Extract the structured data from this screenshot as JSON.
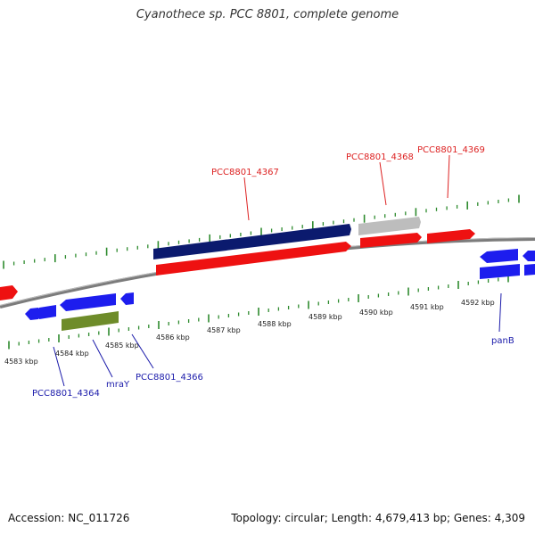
{
  "title": "Cyanothece sp. PCC 8801, complete genome",
  "footer": {
    "accession": "Accession: NC_011726",
    "summary": "Topology: circular; Length: 4,679,413 bp; Genes: 4,309"
  },
  "colors": {
    "backbone": "#8c8c8c",
    "tick": "#2e8b2e",
    "forward_label": "#dd2222",
    "reverse_label": "#1a1aaa",
    "navy": "#0b1a6e",
    "red": "#ee1111",
    "gray": "#bdbdbd",
    "blue": "#1d1dee",
    "olive": "#6e8c2a"
  },
  "scale": {
    "unit": "kbp",
    "ticks": [
      "4583 kbp",
      "4584 kbp",
      "4585 kbp",
      "4586 kbp",
      "4587 kbp",
      "4588 kbp",
      "4589 kbp",
      "4590 kbp",
      "4591 kbp",
      "4592 kbp"
    ]
  },
  "features": {
    "forward_labels": [
      "PCC8801_4367",
      "PCC8801_4368",
      "PCC8801_4369"
    ],
    "reverse_labels": [
      "PCC8801_4364",
      "mraY",
      "PCC8801_4366",
      "panB"
    ]
  }
}
